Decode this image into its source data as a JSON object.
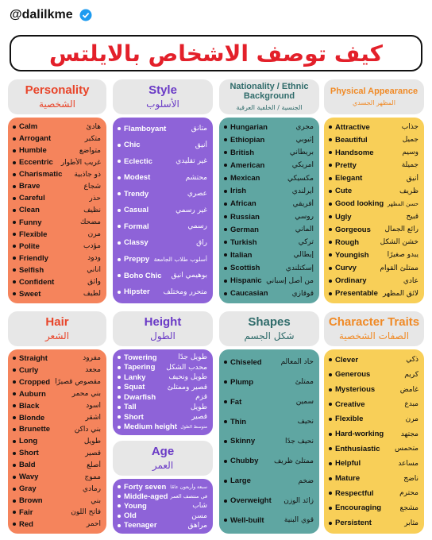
{
  "handle": "@dalilkme",
  "title": "كيف توصف الاشخاص بالايلتس",
  "sections": [
    {
      "title_en": "Personality",
      "title_ar": "الشخصية",
      "items": [
        [
          "Calm",
          "هادئ"
        ],
        [
          "Arrogant",
          "متكبر"
        ],
        [
          "Humble",
          "متواضع"
        ],
        [
          "Eccentric",
          "غريب الأطوار"
        ],
        [
          "Charismatic",
          "ذو جاذبية"
        ],
        [
          "Brave",
          "شجاع"
        ],
        [
          "Careful",
          "حذر"
        ],
        [
          "Clean",
          "نظيف"
        ],
        [
          "Funny",
          "مضحك"
        ],
        [
          "Flexible",
          "مرن"
        ],
        [
          "Polite",
          "مؤدب"
        ],
        [
          "Friendly",
          "ودود"
        ],
        [
          "Selfish",
          "أناني"
        ],
        [
          "Confident",
          "واثق"
        ],
        [
          "Sweet",
          "لطيف"
        ]
      ]
    },
    {
      "title_en": "Style",
      "title_ar": "الأسلوب",
      "items": [
        [
          "Flamboyant",
          "متأنق"
        ],
        [
          "Chic",
          "أنيق"
        ],
        [
          "Eclectic",
          "غير تقليدي"
        ],
        [
          "Modest",
          "محتشم"
        ],
        [
          "Trendy",
          "عصري"
        ],
        [
          "Casual",
          "غير رسمي"
        ],
        [
          "Formal",
          "رسمي"
        ],
        [
          "Classy",
          "راقٍ"
        ],
        [
          "Preppy",
          "أسلوب طلاب الجامعة"
        ],
        [
          "Boho Chic",
          "بوهيمي أنيق"
        ],
        [
          "Hipster",
          "متحرر ومختلف"
        ]
      ]
    },
    {
      "title_en": "Nationality / Ethnic Background",
      "title_ar": "الجنسية / الخلفية العرقية",
      "items": [
        [
          "Hungarian",
          "مجري"
        ],
        [
          "Ethiopian",
          "إثيوبي"
        ],
        [
          "British",
          "بريطاني"
        ],
        [
          "American",
          "أمريكي"
        ],
        [
          "Mexican",
          "مكسيكي"
        ],
        [
          "Irish",
          "أيرلندي"
        ],
        [
          "African",
          "أفريقي"
        ],
        [
          "Russian",
          "روسي"
        ],
        [
          "German",
          "ألماني"
        ],
        [
          "Turkish",
          "تركي"
        ],
        [
          "Italian",
          "إيطالي"
        ],
        [
          "Scottish",
          "إسكتلندي"
        ],
        [
          "Hispanic",
          "من أصل إسباني"
        ],
        [
          "Caucasian",
          "قوقازي"
        ]
      ]
    },
    {
      "title_en": "Physical Appearance",
      "title_ar": "المظهر الجسدي",
      "items": [
        [
          "Attractive",
          "جذاب"
        ],
        [
          "Beautiful",
          "جميل"
        ],
        [
          "Handsome",
          "وسيم"
        ],
        [
          "Pretty",
          "جميلة"
        ],
        [
          "Elegant",
          "أنيق"
        ],
        [
          "Cute",
          "ظريف"
        ],
        [
          "Good looking",
          "حسن المظهر"
        ],
        [
          "Ugly",
          "قبيح"
        ],
        [
          "Gorgeous",
          "رائع الجمال"
        ],
        [
          "Rough",
          "خشن الشكل"
        ],
        [
          "Youngish",
          "يبدو صغيرًا"
        ],
        [
          "Curvy",
          "ممتلئ القوام"
        ],
        [
          "Ordinary",
          "عادي"
        ],
        [
          "Presentable",
          "لائق المظهر"
        ]
      ]
    },
    {
      "title_en": "Hair",
      "title_ar": "الشعر",
      "items": [
        [
          "Straight",
          "مفرود"
        ],
        [
          "Curly",
          "مجعد"
        ],
        [
          "Cropped",
          "مقصوص قصيرًا"
        ],
        [
          "Auburn",
          "بني محمر"
        ],
        [
          "Black",
          "أسود"
        ],
        [
          "Blonde",
          "أشقر"
        ],
        [
          "Brunette",
          "بني داكن"
        ],
        [
          "Long",
          "طويل"
        ],
        [
          "Short",
          "قصير"
        ],
        [
          "Bald",
          "أصلع"
        ],
        [
          "Wavy",
          "مموج"
        ],
        [
          "Gray",
          "رمادي"
        ],
        [
          "Brown",
          "بني"
        ],
        [
          "Fair",
          "فاتح اللون"
        ],
        [
          "Red",
          "أحمر"
        ]
      ]
    },
    {
      "title_en": "Height",
      "title_ar": "الطول",
      "items": [
        [
          "Towering",
          "طويل جدًا"
        ],
        [
          "Tapering",
          "محدب الشكل"
        ],
        [
          "Lanky",
          "طويل ونحيف"
        ],
        [
          "Squat",
          "قصير وممتلئ"
        ],
        [
          "Dwarfish",
          "قزم"
        ],
        [
          "Tall",
          "طويل"
        ],
        [
          "Short",
          "قصير"
        ],
        [
          "Medium height",
          "متوسط الطول"
        ]
      ]
    },
    {
      "title_en": "Age",
      "title_ar": "العمر",
      "items": [
        [
          "Forty seven",
          "سبعة وأربعون عامًا"
        ],
        [
          "Middle-aged",
          "في منتصف العمر"
        ],
        [
          "Young",
          "شاب"
        ],
        [
          "Old",
          "مسن"
        ],
        [
          "Teenager",
          "مراهق"
        ]
      ]
    },
    {
      "title_en": "Shapes",
      "title_ar": "شكل الجسم",
      "items": [
        [
          "Chiseled",
          "حاد المعالم"
        ],
        [
          "Plump",
          "ممتلئ"
        ],
        [
          "Fat",
          "سمين"
        ],
        [
          "Thin",
          "نحيف"
        ],
        [
          "Skinny",
          "نحيف جدًا"
        ],
        [
          "Chubby",
          "ممتلئ ظريف"
        ],
        [
          "Large",
          "ضخم"
        ],
        [
          "Overweight",
          "زائد الوزن"
        ],
        [
          "Well-built",
          "قوي البنية"
        ]
      ]
    },
    {
      "title_en": "Character Traits",
      "title_ar": "الصفات الشخصية",
      "items": [
        [
          "Clever",
          "ذكي"
        ],
        [
          "Generous",
          "كريم"
        ],
        [
          "Mysterious",
          "غامض"
        ],
        [
          "Creative",
          "مبدع"
        ],
        [
          "Flexible",
          "مرن"
        ],
        [
          "Hard-working",
          "مجتهد"
        ],
        [
          "Enthusiastic",
          "متحمس"
        ],
        [
          "Helpful",
          "مساعد"
        ],
        [
          "Mature",
          "ناضج"
        ],
        [
          "Respectful",
          "محترم"
        ],
        [
          "Encouraging",
          "مشجع"
        ],
        [
          "Persistent",
          "مثابر"
        ]
      ]
    }
  ]
}
